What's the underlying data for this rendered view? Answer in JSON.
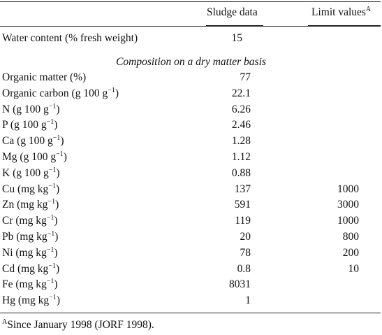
{
  "table": {
    "headers": {
      "label": "",
      "sludge": "Sludge data",
      "limit": "Limit values",
      "limit_footnote_marker": "A"
    },
    "water_row": {
      "label": "Water content (% fresh weight)",
      "sludge": "15",
      "limit": ""
    },
    "section_title": "Composition on a dry matter basis",
    "rows": [
      {
        "label": "Organic matter (%)",
        "unit_sup": "",
        "unit_tail": "",
        "sludge": "77",
        "limit": ""
      },
      {
        "label": "Organic carbon (g 100 g",
        "unit_sup": "−1",
        "unit_tail": ")",
        "sludge": "22.1",
        "limit": ""
      },
      {
        "label": "N (g 100 g",
        "unit_sup": "−1",
        "unit_tail": ")",
        "sludge": "6.26",
        "limit": ""
      },
      {
        "label": "P (g 100 g",
        "unit_sup": "−1",
        "unit_tail": ")",
        "sludge": "2.46",
        "limit": ""
      },
      {
        "label": "Ca (g 100 g",
        "unit_sup": "−1",
        "unit_tail": ")",
        "sludge": "1.28",
        "limit": ""
      },
      {
        "label": "Mg (g 100 g",
        "unit_sup": "−1",
        "unit_tail": ")",
        "sludge": "1.12",
        "limit": ""
      },
      {
        "label": "K (g 100 g",
        "unit_sup": "−1",
        "unit_tail": ")",
        "sludge": "0.88",
        "limit": ""
      },
      {
        "label": "Cu (mg kg",
        "unit_sup": "−1",
        "unit_tail": ")",
        "sludge": "137",
        "limit": "1000"
      },
      {
        "label": "Zn (mg kg",
        "unit_sup": "−1",
        "unit_tail": ")",
        "sludge": "591",
        "limit": "3000"
      },
      {
        "label": "Cr (mg kg",
        "unit_sup": "−1",
        "unit_tail": ")",
        "sludge": "119",
        "limit": "1000"
      },
      {
        "label": "Pb (mg kg",
        "unit_sup": "−1",
        "unit_tail": ")",
        "sludge": "20",
        "limit": "800"
      },
      {
        "label": "Ni (mg kg",
        "unit_sup": "−1",
        "unit_tail": ")",
        "sludge": "78",
        "limit": "200"
      },
      {
        "label": "Cd (mg kg",
        "unit_sup": "−1",
        "unit_tail": ")",
        "sludge": "0.8",
        "limit": "10"
      },
      {
        "label": "Fe (mg kg",
        "unit_sup": "−1",
        "unit_tail": ")",
        "sludge": "8031",
        "limit": ""
      },
      {
        "label": "Hg (mg kg",
        "unit_sup": "−1",
        "unit_tail": ")",
        "sludge": "1",
        "limit": ""
      }
    ],
    "footnote": {
      "marker": "A",
      "text": "Since January 1998 (JORF 1998)."
    }
  }
}
